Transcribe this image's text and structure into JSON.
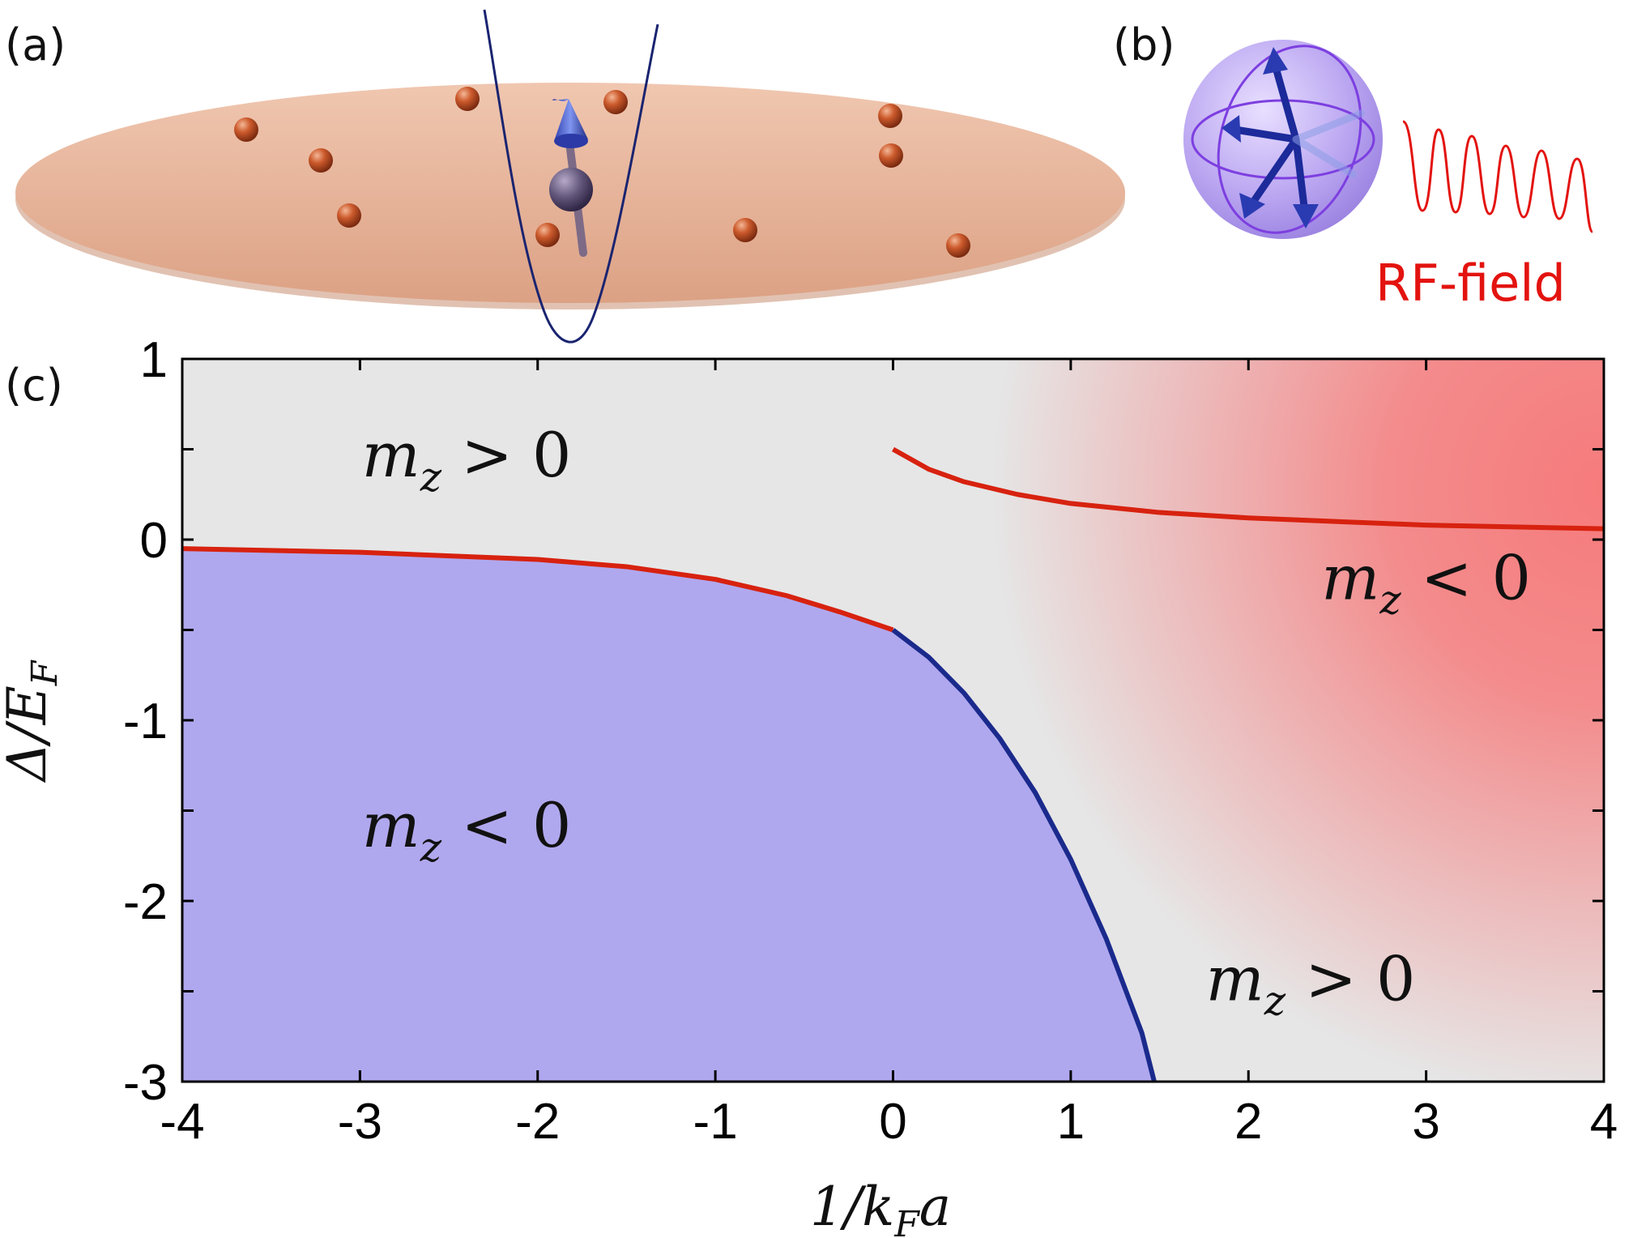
{
  "panels": {
    "a": {
      "label": "(a)"
    },
    "b": {
      "label": "(b)",
      "rf_label": "RF-field"
    },
    "c": {
      "label": "(c)"
    }
  },
  "colors": {
    "red_curve": "#d7220f",
    "blue_curve": "#1a2a8c",
    "blue_region": "#b0a8ee",
    "red_region": "#f67b7c",
    "gray_background": "#e6e6e6",
    "disk": "#e3ab8e",
    "atoms": "#c4552a",
    "sphere": "#b39cf0"
  },
  "chart_data": {
    "type": "line",
    "title": "",
    "xlabel": "1/k_F a",
    "ylabel": "Δ/E_F",
    "xlim": [
      -4,
      4
    ],
    "ylim": [
      -3,
      1
    ],
    "xticks": [
      "-4",
      "-3",
      "-2",
      "-1",
      "0",
      "1",
      "2",
      "3",
      "4"
    ],
    "yticks": [
      "1",
      "0",
      "-1",
      "-2",
      "-3"
    ],
    "grid": false,
    "series": [
      {
        "color": "#d7220f",
        "points": [
          [
            -4,
            -0.05
          ],
          [
            -3,
            -0.07
          ],
          [
            -2,
            -0.11
          ],
          [
            -1.5,
            -0.15
          ],
          [
            -1,
            -0.22
          ],
          [
            -0.6,
            -0.31
          ],
          [
            -0.3,
            -0.4
          ],
          [
            0,
            -0.5
          ]
        ]
      },
      {
        "color": "#1a2a8c",
        "points": [
          [
            0,
            -0.5
          ],
          [
            0.2,
            -0.65
          ],
          [
            0.4,
            -0.85
          ],
          [
            0.6,
            -1.1
          ],
          [
            0.8,
            -1.4
          ],
          [
            1.0,
            -1.77
          ],
          [
            1.2,
            -2.21
          ],
          [
            1.4,
            -2.73
          ],
          [
            1.47,
            -3.0
          ]
        ]
      },
      {
        "color": "#d7220f",
        "points": [
          [
            0,
            0.5
          ],
          [
            0.2,
            0.39
          ],
          [
            0.4,
            0.32
          ],
          [
            0.7,
            0.25
          ],
          [
            1.0,
            0.2
          ],
          [
            1.5,
            0.15
          ],
          [
            2.0,
            0.12
          ],
          [
            3.0,
            0.08
          ],
          [
            4.0,
            0.06
          ]
        ]
      }
    ],
    "annotations": [
      {
        "base": "m",
        "sub": "z",
        "rel": ">",
        "value": "0",
        "region": "upper-left",
        "x": -2.4,
        "y": 0.35
      },
      {
        "base": "m",
        "sub": "z",
        "rel": "<",
        "value": "0",
        "region": "lower-left",
        "x": -2.4,
        "y": -1.7
      },
      {
        "base": "m",
        "sub": "z",
        "rel": ">",
        "value": "0",
        "region": "lower-right",
        "x": 2.35,
        "y": -2.55
      },
      {
        "base": "m",
        "sub": "z",
        "rel": "<",
        "value": "0",
        "region": "right",
        "x": 3.0,
        "y": -0.33
      }
    ]
  }
}
